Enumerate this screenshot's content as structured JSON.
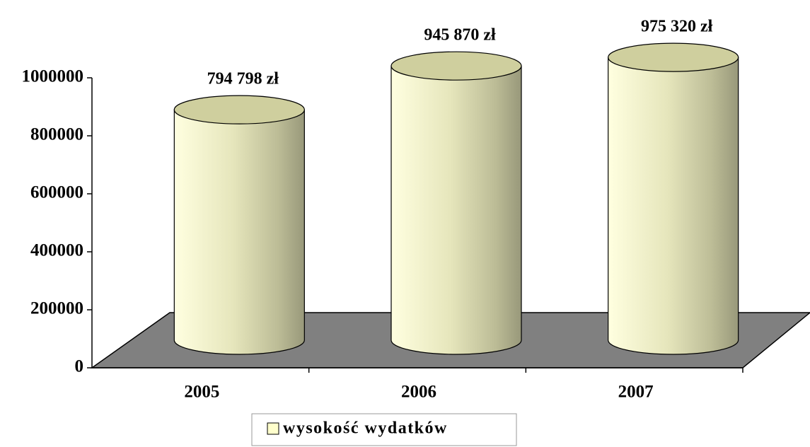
{
  "chart_data": {
    "type": "cylinder",
    "categories": [
      "2005",
      "2006",
      "2007"
    ],
    "series": [
      {
        "name": "wysokość wydatków",
        "color": "#ffffcc",
        "values": [
          794798,
          945870,
          975320
        ],
        "value_labels": [
          "794 798 zł",
          "945 870 zł",
          "975 320 zł"
        ]
      }
    ],
    "ylim": [
      0,
      1000000
    ],
    "yticks": [
      0,
      200000,
      400000,
      600000,
      800000,
      1000000
    ],
    "legend": "bottom"
  }
}
